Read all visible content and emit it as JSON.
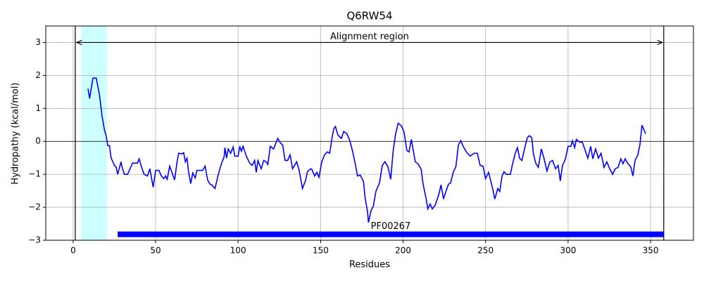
{
  "chart_data": {
    "type": "line",
    "title": "Q6RW54",
    "x_label": "Residues",
    "y_label": "Hydropathy (kcal/mol)",
    "color": "#0000ff",
    "x": [
      9,
      10,
      12,
      14,
      16,
      17.5,
      19,
      20,
      21,
      22,
      23,
      25,
      26,
      27,
      29,
      29.5,
      31,
      33,
      36,
      39,
      40,
      41.5,
      43,
      45,
      46.5,
      48.5,
      50,
      52,
      53.5,
      55,
      56,
      57,
      58.5,
      60,
      61.5,
      63,
      64,
      66,
      67,
      68,
      69,
      70,
      71.3,
      72.5,
      74,
      75,
      78.5,
      80,
      81.5,
      83,
      84,
      86,
      88,
      90,
      91.5,
      92,
      93,
      94,
      95.5,
      97,
      98,
      100,
      101,
      102,
      103,
      105,
      107,
      108.5,
      110,
      111,
      112,
      114,
      115.5,
      117,
      118,
      119.5,
      121.5,
      124,
      125.5,
      127,
      128.5,
      130,
      131.5,
      133,
      134,
      135.5,
      137,
      139,
      141,
      142,
      144,
      144.7,
      146.4,
      147.7,
      149,
      150.7,
      152.4,
      154,
      155.5,
      157,
      158,
      159,
      160.5,
      162.6,
      164,
      166,
      167.7,
      169.4,
      171,
      172.4,
      174,
      176,
      177,
      178.4,
      179,
      180.5,
      182,
      183.5,
      185.7,
      187.4,
      189,
      190.8,
      192.5,
      194,
      195.5,
      197,
      199,
      200.6,
      202.3,
      203.6,
      205,
      207.4,
      209,
      211,
      212,
      214,
      215,
      216.4,
      217.7,
      219.4,
      221.5,
      223,
      224.5,
      225.8,
      227.5,
      228.8,
      230.5,
      232,
      233.5,
      235,
      236.4,
      238.6,
      240.7,
      243,
      245,
      246.7,
      248.4,
      250,
      251.8,
      254,
      255.6,
      257.4,
      258.6,
      260,
      261.2,
      262.5,
      265,
      266.3,
      268,
      269.3,
      270.6,
      272,
      273.6,
      275.3,
      276.6,
      278,
      279,
      280.4,
      282,
      283.8,
      285.5,
      287.2,
      289,
      290.6,
      292.4,
      294,
      295.3,
      296.6,
      298.3,
      300,
      301.7,
      302.6,
      304,
      305,
      307,
      308.6,
      310.3,
      312,
      313.7,
      315,
      316.7,
      318.4,
      320,
      321.8,
      323.5,
      325.2,
      327,
      328.6,
      330.3,
      332,
      333.3,
      334.6,
      336.3,
      338,
      339.3,
      340.6,
      342.3,
      343.6,
      344.8,
      347
    ],
    "values": [
      1.6,
      1.3,
      1.92,
      1.92,
      1.4,
      0.77,
      0.34,
      0.17,
      -0.13,
      -0.13,
      -0.5,
      -0.73,
      -0.77,
      -1.0,
      -0.62,
      -0.75,
      -1.0,
      -1.0,
      -0.66,
      -0.66,
      -0.53,
      -0.79,
      -1.0,
      -1.05,
      -0.83,
      -1.39,
      -0.88,
      -0.88,
      -1.05,
      -1.13,
      -1.05,
      -1.15,
      -0.75,
      -0.96,
      -1.17,
      -0.62,
      -0.36,
      -0.38,
      -0.34,
      -0.62,
      -0.51,
      -0.94,
      -1.28,
      -0.96,
      -1.11,
      -0.88,
      -0.88,
      -0.75,
      -1.17,
      -1.3,
      -1.32,
      -1.43,
      -1.0,
      -0.66,
      -0.47,
      -0.19,
      -0.51,
      -0.23,
      -0.36,
      -0.17,
      -0.45,
      -0.45,
      -0.15,
      -0.3,
      -0.15,
      -0.45,
      -0.66,
      -0.73,
      -0.58,
      -0.94,
      -0.58,
      -0.83,
      -0.58,
      -0.62,
      -0.7,
      -0.15,
      -0.23,
      0.09,
      -0.04,
      -0.11,
      -0.58,
      -0.58,
      -0.41,
      -0.83,
      -0.75,
      -0.62,
      -0.88,
      -1.43,
      -1.17,
      -0.92,
      -0.83,
      -0.85,
      -1.05,
      -0.94,
      -1.09,
      -0.62,
      -0.41,
      -0.32,
      -0.36,
      0.13,
      0.38,
      0.45,
      0.19,
      0.09,
      0.3,
      0.23,
      0.02,
      -0.3,
      -0.68,
      -1.05,
      -1.02,
      -1.22,
      -1.73,
      -2.11,
      -2.46,
      -2.11,
      -1.96,
      -1.52,
      -1.26,
      -0.73,
      -0.62,
      -0.77,
      -1.15,
      -0.28,
      0.23,
      0.55,
      0.47,
      0.28,
      -0.28,
      -0.32,
      0.06,
      -0.62,
      -0.68,
      -0.85,
      -1.26,
      -1.75,
      -2.05,
      -1.9,
      -2.05,
      -1.94,
      -1.64,
      -1.32,
      -1.75,
      -1.54,
      -1.3,
      -1.26,
      -0.92,
      -0.77,
      -0.11,
      0.02,
      -0.15,
      -0.34,
      -0.45,
      -0.36,
      -0.36,
      -0.73,
      -0.75,
      -1.13,
      -0.94,
      -1.37,
      -1.75,
      -1.43,
      -1.52,
      -1.05,
      -0.92,
      -1.0,
      -1.0,
      -0.7,
      -0.36,
      -0.19,
      -0.51,
      -0.58,
      -0.23,
      0.11,
      0.17,
      0.11,
      -0.38,
      -0.66,
      -0.79,
      -0.23,
      -0.53,
      -0.9,
      -0.62,
      -0.58,
      -0.83,
      -0.73,
      -1.2,
      -0.73,
      -0.55,
      -0.15,
      -0.15,
      0.02,
      -0.19,
      0.06,
      -0.02,
      -0.02,
      -0.26,
      -0.51,
      -0.15,
      -0.53,
      -0.23,
      -0.51,
      -0.36,
      -0.79,
      -0.62,
      -0.83,
      -1.0,
      -0.83,
      -0.79,
      -0.53,
      -0.68,
      -0.53,
      -0.68,
      -0.77,
      -1.05,
      -0.58,
      -0.41,
      -0.09,
      0.49,
      0.23
    ],
    "xlim": [
      -16.6,
      376
    ],
    "ylim": [
      -3,
      3.5
    ],
    "xticks": [
      0,
      50,
      100,
      150,
      200,
      250,
      300,
      350
    ],
    "yticks": [
      {
        "value": -3,
        "label": "−3"
      },
      {
        "value": -2,
        "label": "−2"
      },
      {
        "value": -1,
        "label": "−1"
      },
      0,
      1,
      2,
      3
    ],
    "grid": true,
    "zero_line": 0,
    "alignment_region": {
      "label": "Alignment region",
      "start": 1.3,
      "end": 358,
      "y": 3
    },
    "highlight": {
      "start": 5,
      "end": 20.5,
      "color": "#ccffff"
    },
    "domains": [
      {
        "name": "PF00267",
        "start": 27,
        "end": 358,
        "y": -2.82,
        "color": "#0000ff"
      }
    ]
  }
}
